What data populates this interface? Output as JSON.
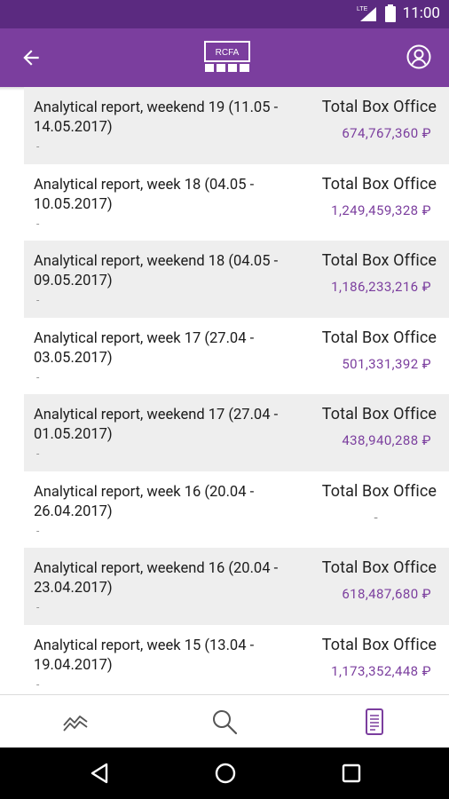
{
  "status_bar": {
    "time": "11:00",
    "network": "LTE"
  },
  "app_bar": {
    "logo_text": "RCFA"
  },
  "reports": [
    {
      "title": "Analytical report, weekend 19 (11.05 - 14.05.2017)",
      "note": "-",
      "label": "Total Box Office",
      "value": "674,767,360 ₽"
    },
    {
      "title": "Analytical report, week 18 (04.05 - 10.05.2017)",
      "note": "-",
      "label": "Total Box Office",
      "value": "1,249,459,328 ₽"
    },
    {
      "title": "Analytical report, weekend 18 (04.05 - 09.05.2017)",
      "note": "-",
      "label": "Total Box Office",
      "value": "1,186,233,216 ₽"
    },
    {
      "title": "Analytical report, week 17 (27.04 - 03.05.2017)",
      "note": "-",
      "label": "Total Box Office",
      "value": "501,331,392 ₽"
    },
    {
      "title": "Analytical report, weekend 17 (27.04 - 01.05.2017)",
      "note": "-",
      "label": "Total Box Office",
      "value": "438,940,288 ₽"
    },
    {
      "title": "Analytical report, week 16 (20.04 - 26.04.2017)",
      "note": "-",
      "label": "Total Box Office",
      "value": "-"
    },
    {
      "title": "Analytical report, weekend 16 (20.04 - 23.04.2017)",
      "note": "-",
      "label": "Total Box Office",
      "value": "618,487,680 ₽"
    },
    {
      "title": "Analytical report, week 15 (13.04 - 19.04.2017)",
      "note": "-",
      "label": "Total Box Office",
      "value": "1,173,352,448 ₽"
    }
  ],
  "bottom_nav": {
    "items": [
      "chart-icon",
      "search-icon",
      "reports-icon"
    ],
    "active": "reports-icon"
  },
  "colors": {
    "status_bar": "#5b2a80",
    "app_bar": "#7b3e9e",
    "accent": "#7b3e9e",
    "row_shade": "#eeeeee"
  }
}
